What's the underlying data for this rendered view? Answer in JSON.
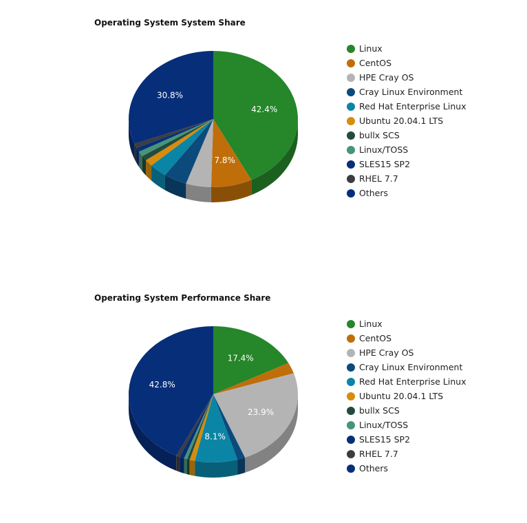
{
  "chart_data": [
    {
      "type": "pie",
      "title": "Operating System System Share",
      "categories": [
        "Linux",
        "CentOS",
        "HPE Cray OS",
        "Cray Linux Environment",
        "Red Hat Enterprise Linux",
        "Ubuntu 20.04.1 LTS",
        "bullx SCS",
        "Linux/TOSS",
        "SLES15 SP2",
        "RHEL 7.7",
        "Others"
      ],
      "values": [
        42.4,
        7.8,
        4.8,
        4.4,
        3.4,
        1.6,
        1.2,
        1.2,
        1.0,
        1.0,
        30.8
      ],
      "data_labels": [
        "42.4%",
        "7.8%",
        "",
        "",
        "",
        "",
        "",
        "",
        "",
        "",
        "30.8%"
      ],
      "colors": [
        "#25862a",
        "#c06e0a",
        "#b4b4b4",
        "#0c4a7c",
        "#0a85a5",
        "#d68c0c",
        "#234a3d",
        "#469479",
        "#072e79",
        "#3d3d40",
        "#072e79"
      ],
      "legend_position": "right"
    },
    {
      "type": "pie",
      "title": "Operating System Performance Share",
      "categories": [
        "Linux",
        "CentOS",
        "HPE Cray OS",
        "Cray Linux Environment",
        "Red Hat Enterprise Linux",
        "Ubuntu 20.04.1 LTS",
        "bullx SCS",
        "Linux/TOSS",
        "SLES15 SP2",
        "RHEL 7.7",
        "Others"
      ],
      "values": [
        17.4,
        2.6,
        23.9,
        1.5,
        8.1,
        1.0,
        0.5,
        0.6,
        0.9,
        0.7,
        42.8
      ],
      "data_labels": [
        "17.4%",
        "",
        "23.9%",
        "",
        "8.1%",
        "",
        "",
        "",
        "",
        "",
        "42.8%"
      ],
      "colors": [
        "#25862a",
        "#c06e0a",
        "#b4b4b4",
        "#0c4a7c",
        "#0a85a5",
        "#d68c0c",
        "#234a3d",
        "#469479",
        "#072e79",
        "#3d3d40",
        "#072e79"
      ],
      "legend_position": "right"
    }
  ]
}
